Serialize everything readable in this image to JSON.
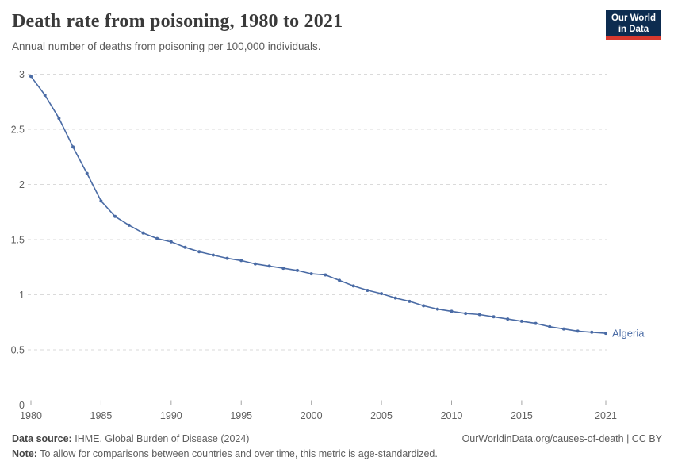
{
  "header": {
    "title": "Death rate from poisoning, 1980 to 2021",
    "subtitle": "Annual number of deaths from poisoning per 100,000 individuals."
  },
  "logo": {
    "line1": "Our World",
    "line2": "in Data",
    "bg_color": "#0d2c50",
    "accent_color": "#d8392e"
  },
  "chart_data": {
    "type": "line",
    "title": "Death rate from poisoning, 1980 to 2021",
    "xlabel": "",
    "ylabel": "",
    "ylim": [
      0,
      3
    ],
    "yticks": [
      0,
      0.5,
      1,
      1.5,
      2,
      2.5,
      3
    ],
    "xticks": [
      1980,
      1985,
      1990,
      1995,
      2000,
      2005,
      2010,
      2015,
      2021
    ],
    "grid": "dashed-horizontal",
    "legend_position": "end-of-line",
    "x": [
      1980,
      1981,
      1982,
      1983,
      1984,
      1985,
      1986,
      1987,
      1988,
      1989,
      1990,
      1991,
      1992,
      1993,
      1994,
      1995,
      1996,
      1997,
      1998,
      1999,
      2000,
      2001,
      2002,
      2003,
      2004,
      2005,
      2006,
      2007,
      2008,
      2009,
      2010,
      2011,
      2012,
      2013,
      2014,
      2015,
      2016,
      2017,
      2018,
      2019,
      2020,
      2021
    ],
    "series": [
      {
        "name": "Algeria",
        "color": "#4a6ba5",
        "values": [
          2.98,
          2.81,
          2.6,
          2.34,
          2.1,
          1.85,
          1.71,
          1.63,
          1.56,
          1.51,
          1.48,
          1.43,
          1.39,
          1.36,
          1.33,
          1.31,
          1.28,
          1.26,
          1.24,
          1.22,
          1.19,
          1.18,
          1.13,
          1.08,
          1.04,
          1.01,
          0.97,
          0.94,
          0.9,
          0.87,
          0.85,
          0.83,
          0.82,
          0.8,
          0.78,
          0.76,
          0.74,
          0.71,
          0.69,
          0.67,
          0.66,
          0.65
        ]
      }
    ],
    "colors": {
      "gridline": "#dadada",
      "axis": "#a5a5a5",
      "tick_label": "#606060"
    }
  },
  "footer": {
    "source_label": "Data source:",
    "source_value": "IHME, Global Burden of Disease (2024)",
    "link": "OurWorldinData.org/causes-of-death | CC BY",
    "note_label": "Note:",
    "note_text": "To allow for comparisons between countries and over time, this metric is age-standardized."
  }
}
